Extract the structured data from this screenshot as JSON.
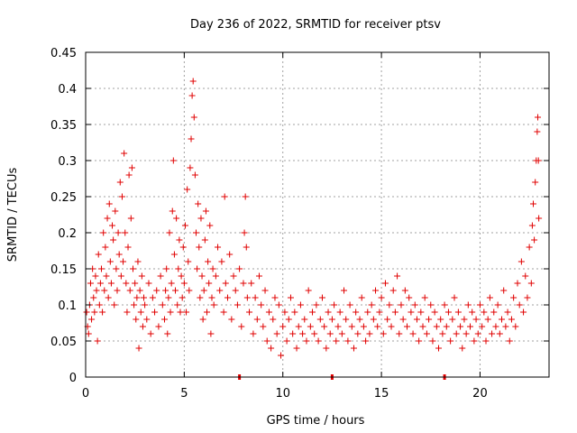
{
  "chart_data": {
    "type": "scatter",
    "title": "Day 236 of 2022, SRMTID for receiver ptsv",
    "xlabel": "GPS time / hours",
    "ylabel": "SRMTID / TECUs",
    "xlim": [
      0,
      23.5
    ],
    "ylim": [
      0,
      0.45
    ],
    "x_ticks": [
      0,
      5,
      10,
      15,
      20
    ],
    "x_tick_labels": [
      "0",
      "5",
      "10",
      "15",
      "20"
    ],
    "y_ticks": [
      0,
      0.05,
      0.1,
      0.15,
      0.2,
      0.25,
      0.3,
      0.35,
      0.4,
      0.45
    ],
    "y_tick_labels": [
      "0",
      "0.05",
      "0.1",
      "0.15",
      "0.2",
      "0.25",
      "0.3",
      "0.35",
      "0.4",
      "0.45"
    ],
    "grid": true,
    "marker": "+",
    "color": "#e00000",
    "series": [
      {
        "name": "SRMTID ptsv",
        "points": [
          [
            0.05,
            0.09
          ],
          [
            0.1,
            0.07
          ],
          [
            0.15,
            0.06
          ],
          [
            0.2,
            0.1
          ],
          [
            0.25,
            0.13
          ],
          [
            0.3,
            0.08
          ],
          [
            0.35,
            0.15
          ],
          [
            0.4,
            0.11
          ],
          [
            0.45,
            0.09
          ],
          [
            0.5,
            0.14
          ],
          [
            0.55,
            0.12
          ],
          [
            0.6,
            0.05
          ],
          [
            0.65,
            0.17
          ],
          [
            0.7,
            0.1
          ],
          [
            0.75,
            0.13
          ],
          [
            0.8,
            0.15
          ],
          [
            0.85,
            0.09
          ],
          [
            0.9,
            0.2
          ],
          [
            0.95,
            0.12
          ],
          [
            1.0,
            0.18
          ],
          [
            1.05,
            0.14
          ],
          [
            1.1,
            0.22
          ],
          [
            1.15,
            0.11
          ],
          [
            1.2,
            0.24
          ],
          [
            1.25,
            0.16
          ],
          [
            1.3,
            0.13
          ],
          [
            1.35,
            0.21
          ],
          [
            1.4,
            0.19
          ],
          [
            1.45,
            0.1
          ],
          [
            1.5,
            0.23
          ],
          [
            1.55,
            0.15
          ],
          [
            1.6,
            0.12
          ],
          [
            1.65,
            0.2
          ],
          [
            1.7,
            0.17
          ],
          [
            1.75,
            0.27
          ],
          [
            1.8,
            0.14
          ],
          [
            1.85,
            0.25
          ],
          [
            1.9,
            0.16
          ],
          [
            1.95,
            0.31
          ],
          [
            2.0,
            0.2
          ],
          [
            2.05,
            0.13
          ],
          [
            2.1,
            0.09
          ],
          [
            2.15,
            0.18
          ],
          [
            2.2,
            0.28
          ],
          [
            2.25,
            0.12
          ],
          [
            2.3,
            0.22
          ],
          [
            2.35,
            0.29
          ],
          [
            2.4,
            0.15
          ],
          [
            2.45,
            0.1
          ],
          [
            2.5,
            0.13
          ],
          [
            2.55,
            0.08
          ],
          [
            2.6,
            0.11
          ],
          [
            2.65,
            0.16
          ],
          [
            2.7,
            0.04
          ],
          [
            2.75,
            0.12
          ],
          [
            2.8,
            0.09
          ],
          [
            2.85,
            0.14
          ],
          [
            2.9,
            0.07
          ],
          [
            2.95,
            0.11
          ],
          [
            3.0,
            0.1
          ],
          [
            3.1,
            0.08
          ],
          [
            3.2,
            0.13
          ],
          [
            3.3,
            0.06
          ],
          [
            3.4,
            0.11
          ],
          [
            3.5,
            0.09
          ],
          [
            3.6,
            0.12
          ],
          [
            3.7,
            0.07
          ],
          [
            3.8,
            0.14
          ],
          [
            3.9,
            0.1
          ],
          [
            4.0,
            0.08
          ],
          [
            4.05,
            0.12
          ],
          [
            4.1,
            0.15
          ],
          [
            4.15,
            0.06
          ],
          [
            4.2,
            0.11
          ],
          [
            4.25,
            0.2
          ],
          [
            4.3,
            0.09
          ],
          [
            4.35,
            0.13
          ],
          [
            4.4,
            0.23
          ],
          [
            4.45,
            0.3
          ],
          [
            4.5,
            0.17
          ],
          [
            4.55,
            0.12
          ],
          [
            4.6,
            0.22
          ],
          [
            4.65,
            0.1
          ],
          [
            4.7,
            0.15
          ],
          [
            4.75,
            0.19
          ],
          [
            4.8,
            0.09
          ],
          [
            4.85,
            0.14
          ],
          [
            4.9,
            0.11
          ],
          [
            4.95,
            0.18
          ],
          [
            5.0,
            0.13
          ],
          [
            5.05,
            0.21
          ],
          [
            5.1,
            0.09
          ],
          [
            5.15,
            0.26
          ],
          [
            5.2,
            0.16
          ],
          [
            5.25,
            0.12
          ],
          [
            5.3,
            0.29
          ],
          [
            5.35,
            0.33
          ],
          [
            5.4,
            0.39
          ],
          [
            5.45,
            0.41
          ],
          [
            5.5,
            0.36
          ],
          [
            5.55,
            0.28
          ],
          [
            5.6,
            0.2
          ],
          [
            5.65,
            0.15
          ],
          [
            5.7,
            0.24
          ],
          [
            5.75,
            0.18
          ],
          [
            5.8,
            0.11
          ],
          [
            5.85,
            0.22
          ],
          [
            5.9,
            0.14
          ],
          [
            5.95,
            0.08
          ],
          [
            6.0,
            0.12
          ],
          [
            6.05,
            0.19
          ],
          [
            6.1,
            0.23
          ],
          [
            6.15,
            0.09
          ],
          [
            6.2,
            0.16
          ],
          [
            6.25,
            0.13
          ],
          [
            6.3,
            0.21
          ],
          [
            6.35,
            0.06
          ],
          [
            6.4,
            0.11
          ],
          [
            6.45,
            0.15
          ],
          [
            6.5,
            0.1
          ],
          [
            6.6,
            0.14
          ],
          [
            6.7,
            0.18
          ],
          [
            6.8,
            0.12
          ],
          [
            6.9,
            0.16
          ],
          [
            7.0,
            0.09
          ],
          [
            7.05,
            0.25
          ],
          [
            7.1,
            0.13
          ],
          [
            7.2,
            0.11
          ],
          [
            7.3,
            0.17
          ],
          [
            7.4,
            0.08
          ],
          [
            7.5,
            0.14
          ],
          [
            7.6,
            0.12
          ],
          [
            7.7,
            0.1
          ],
          [
            7.8,
            0.15
          ],
          [
            7.9,
            0.07
          ],
          [
            8.0,
            0.13
          ],
          [
            8.05,
            0.2
          ],
          [
            8.1,
            0.25
          ],
          [
            8.15,
            0.18
          ],
          [
            8.2,
            0.11
          ],
          [
            8.3,
            0.09
          ],
          [
            8.4,
            0.13
          ],
          [
            8.5,
            0.06
          ],
          [
            8.6,
            0.11
          ],
          [
            8.7,
            0.08
          ],
          [
            8.8,
            0.14
          ],
          [
            8.9,
            0.1
          ],
          [
            9.0,
            0.07
          ],
          [
            9.1,
            0.12
          ],
          [
            9.2,
            0.05
          ],
          [
            9.3,
            0.09
          ],
          [
            9.4,
            0.04
          ],
          [
            9.5,
            0.08
          ],
          [
            9.6,
            0.11
          ],
          [
            9.7,
            0.06
          ],
          [
            9.8,
            0.1
          ],
          [
            9.9,
            0.03
          ],
          [
            10.0,
            0.07
          ],
          [
            10.1,
            0.09
          ],
          [
            10.2,
            0.05
          ],
          [
            10.3,
            0.08
          ],
          [
            10.4,
            0.11
          ],
          [
            10.5,
            0.06
          ],
          [
            10.6,
            0.09
          ],
          [
            10.7,
            0.04
          ],
          [
            10.8,
            0.07
          ],
          [
            10.9,
            0.1
          ],
          [
            11.0,
            0.06
          ],
          [
            11.1,
            0.08
          ],
          [
            11.2,
            0.05
          ],
          [
            11.3,
            0.12
          ],
          [
            11.4,
            0.07
          ],
          [
            11.5,
            0.09
          ],
          [
            11.6,
            0.06
          ],
          [
            11.7,
            0.1
          ],
          [
            11.8,
            0.05
          ],
          [
            11.9,
            0.08
          ],
          [
            12.0,
            0.11
          ],
          [
            12.1,
            0.07
          ],
          [
            12.2,
            0.04
          ],
          [
            12.3,
            0.09
          ],
          [
            12.4,
            0.06
          ],
          [
            12.5,
            0.08
          ],
          [
            12.6,
            0.1
          ],
          [
            12.7,
            0.05
          ],
          [
            12.8,
            0.07
          ],
          [
            12.9,
            0.09
          ],
          [
            13.0,
            0.06
          ],
          [
            13.1,
            0.12
          ],
          [
            13.2,
            0.08
          ],
          [
            13.3,
            0.05
          ],
          [
            13.4,
            0.1
          ],
          [
            13.5,
            0.07
          ],
          [
            13.6,
            0.04
          ],
          [
            13.7,
            0.09
          ],
          [
            13.8,
            0.06
          ],
          [
            13.9,
            0.08
          ],
          [
            14.0,
            0.11
          ],
          [
            14.1,
            0.07
          ],
          [
            14.2,
            0.05
          ],
          [
            14.3,
            0.09
          ],
          [
            14.4,
            0.06
          ],
          [
            14.5,
            0.1
          ],
          [
            14.6,
            0.08
          ],
          [
            14.7,
            0.12
          ],
          [
            14.8,
            0.07
          ],
          [
            14.9,
            0.09
          ],
          [
            15.0,
            0.11
          ],
          [
            15.1,
            0.06
          ],
          [
            15.2,
            0.13
          ],
          [
            15.3,
            0.08
          ],
          [
            15.4,
            0.1
          ],
          [
            15.5,
            0.07
          ],
          [
            15.6,
            0.12
          ],
          [
            15.7,
            0.09
          ],
          [
            15.8,
            0.14
          ],
          [
            15.9,
            0.06
          ],
          [
            16.0,
            0.1
          ],
          [
            16.1,
            0.08
          ],
          [
            16.2,
            0.12
          ],
          [
            16.3,
            0.07
          ],
          [
            16.4,
            0.11
          ],
          [
            16.5,
            0.09
          ],
          [
            16.6,
            0.06
          ],
          [
            16.7,
            0.1
          ],
          [
            16.8,
            0.08
          ],
          [
            16.9,
            0.05
          ],
          [
            17.0,
            0.09
          ],
          [
            17.1,
            0.07
          ],
          [
            17.2,
            0.11
          ],
          [
            17.3,
            0.06
          ],
          [
            17.4,
            0.08
          ],
          [
            17.5,
            0.1
          ],
          [
            17.6,
            0.05
          ],
          [
            17.7,
            0.09
          ],
          [
            17.8,
            0.07
          ],
          [
            17.9,
            0.04
          ],
          [
            18.0,
            0.08
          ],
          [
            18.1,
            0.06
          ],
          [
            18.2,
            0.1
          ],
          [
            18.3,
            0.07
          ],
          [
            18.4,
            0.09
          ],
          [
            18.5,
            0.05
          ],
          [
            18.6,
            0.08
          ],
          [
            18.7,
            0.11
          ],
          [
            18.8,
            0.06
          ],
          [
            18.9,
            0.09
          ],
          [
            19.0,
            0.07
          ],
          [
            19.1,
            0.04
          ],
          [
            19.2,
            0.08
          ],
          [
            19.3,
            0.06
          ],
          [
            19.4,
            0.1
          ],
          [
            19.5,
            0.07
          ],
          [
            19.6,
            0.09
          ],
          [
            19.7,
            0.05
          ],
          [
            19.8,
            0.08
          ],
          [
            19.9,
            0.06
          ],
          [
            20.0,
            0.1
          ],
          [
            20.1,
            0.07
          ],
          [
            20.2,
            0.09
          ],
          [
            20.3,
            0.05
          ],
          [
            20.4,
            0.08
          ],
          [
            20.5,
            0.11
          ],
          [
            20.6,
            0.06
          ],
          [
            20.7,
            0.09
          ],
          [
            20.8,
            0.07
          ],
          [
            20.9,
            0.1
          ],
          [
            21.0,
            0.06
          ],
          [
            21.1,
            0.08
          ],
          [
            21.2,
            0.12
          ],
          [
            21.3,
            0.07
          ],
          [
            21.4,
            0.09
          ],
          [
            21.5,
            0.05
          ],
          [
            21.6,
            0.08
          ],
          [
            21.7,
            0.11
          ],
          [
            21.8,
            0.07
          ],
          [
            21.9,
            0.13
          ],
          [
            22.0,
            0.1
          ],
          [
            22.1,
            0.16
          ],
          [
            22.2,
            0.09
          ],
          [
            22.3,
            0.14
          ],
          [
            22.4,
            0.11
          ],
          [
            22.5,
            0.18
          ],
          [
            22.6,
            0.13
          ],
          [
            22.65,
            0.21
          ],
          [
            22.7,
            0.24
          ],
          [
            22.75,
            0.19
          ],
          [
            22.8,
            0.27
          ],
          [
            22.85,
            0.3
          ],
          [
            22.9,
            0.34
          ],
          [
            22.93,
            0.36
          ],
          [
            22.96,
            0.3
          ],
          [
            22.98,
            0.22
          ]
        ]
      }
    ],
    "axis_markers_x": [
      7.8,
      12.5,
      18.2
    ]
  }
}
